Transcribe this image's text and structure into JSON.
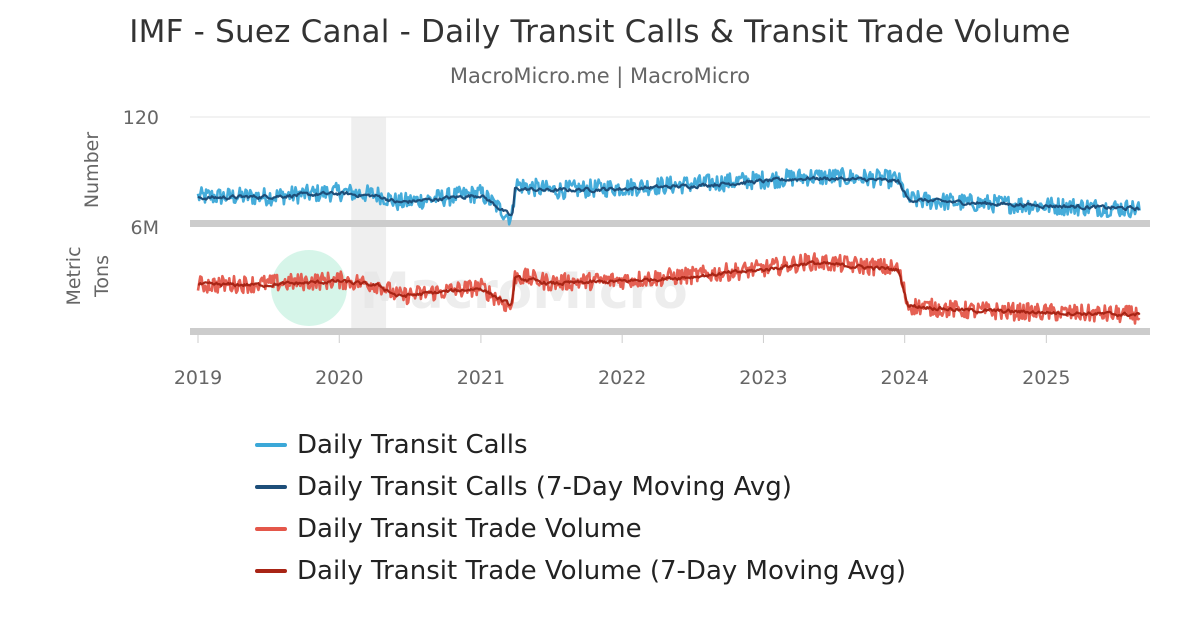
{
  "chart": {
    "title": "IMF - Suez Canal - Daily Transit Calls & Transit Trade Volume",
    "subtitle": "MacroMicro.me | MacroMicro",
    "watermark": "MacroMicro"
  },
  "chart_data": {
    "type": "line",
    "title": "IMF - Suez Canal - Daily Transit Calls & Transit Trade Volume",
    "subtitle": "MacroMicro.me | MacroMicro",
    "x_range": [
      "2019-01-01",
      "2025-08-31"
    ],
    "x_ticks": [
      "2019",
      "2020",
      "2021",
      "2022",
      "2023",
      "2024",
      "2025"
    ],
    "highlight_band": [
      "2020-02-01",
      "2020-05-01"
    ],
    "grid": "horizontal",
    "legend_position": "bottom",
    "panels": [
      {
        "ylabel": "Number",
        "ytick_labels": [
          "120"
        ],
        "series": [
          {
            "name": "Daily Transit Calls",
            "color": "#3ba8d8",
            "x": [
              "2019-01-01",
              "2019-07-01",
              "2020-01-01",
              "2020-04-15",
              "2020-06-01",
              "2021-01-01",
              "2021-03-20",
              "2021-03-25",
              "2021-03-30",
              "2021-07-01",
              "2022-01-01",
              "2022-07-01",
              "2023-01-01",
              "2023-05-01",
              "2023-10-01",
              "2023-12-15",
              "2024-01-10",
              "2024-06-01",
              "2025-01-01",
              "2025-08-31"
            ],
            "values": [
              68,
              68,
              71,
              69,
              64,
              70,
              54,
              58,
              76,
              72,
              74,
              76,
              79,
              81,
              80,
              79,
              66,
              64,
              62,
              60
            ]
          },
          {
            "name": "Daily Transit Calls (7-Day Moving Avg)",
            "color": "#1d4e79",
            "x": [
              "2019-01-01",
              "2019-07-01",
              "2020-01-01",
              "2020-04-15",
              "2020-06-01",
              "2021-01-01",
              "2021-03-20",
              "2021-03-25",
              "2021-03-30",
              "2021-07-01",
              "2022-01-01",
              "2022-07-01",
              "2023-01-01",
              "2023-05-01",
              "2023-10-01",
              "2023-12-15",
              "2024-01-10",
              "2024-06-01",
              "2025-01-01",
              "2025-08-31"
            ],
            "values": [
              67,
              68,
              70,
              68,
              64,
              69,
              55,
              58,
              73,
              72,
              73,
              75,
              78,
              80,
              79,
              78,
              66,
              64,
              62,
              60
            ]
          }
        ]
      },
      {
        "ylabel": "Metric Tons",
        "ytick_labels": [
          "6M"
        ],
        "series": [
          {
            "name": "Daily Transit Trade Volume",
            "color": "#e4574a",
            "x": [
              "2019-01-01",
              "2019-07-01",
              "2020-01-01",
              "2020-04-15",
              "2020-06-01",
              "2021-01-01",
              "2021-03-20",
              "2021-03-25",
              "2021-03-30",
              "2021-07-01",
              "2022-01-01",
              "2022-07-01",
              "2023-01-01",
              "2023-05-01",
              "2023-10-01",
              "2023-12-15",
              "2024-01-10",
              "2024-06-01",
              "2025-01-01",
              "2025-08-31"
            ],
            "values": [
              3.5,
              3.55,
              3.7,
              3.5,
              3.0,
              3.4,
              2.5,
              3.0,
              3.9,
              3.6,
              3.7,
              3.9,
              4.2,
              4.5,
              4.3,
              4.2,
              2.6,
              2.4,
              2.3,
              2.2
            ]
          },
          {
            "name": "Daily Transit Trade Volume (7-Day Moving Avg)",
            "color": "#a82415",
            "x": [
              "2019-01-01",
              "2019-07-01",
              "2020-01-01",
              "2020-04-15",
              "2020-06-01",
              "2021-01-01",
              "2021-03-20",
              "2021-03-25",
              "2021-03-30",
              "2021-07-01",
              "2022-01-01",
              "2022-07-01",
              "2023-01-01",
              "2023-05-01",
              "2023-10-01",
              "2023-12-15",
              "2024-01-10",
              "2024-06-01",
              "2025-01-01",
              "2025-08-31"
            ],
            "values": [
              3.5,
              3.5,
              3.65,
              3.45,
              3.0,
              3.35,
              2.6,
              3.0,
              3.8,
              3.55,
              3.65,
              3.85,
              4.15,
              4.45,
              4.25,
              4.15,
              2.6,
              2.4,
              2.3,
              2.2
            ]
          }
        ]
      }
    ]
  }
}
